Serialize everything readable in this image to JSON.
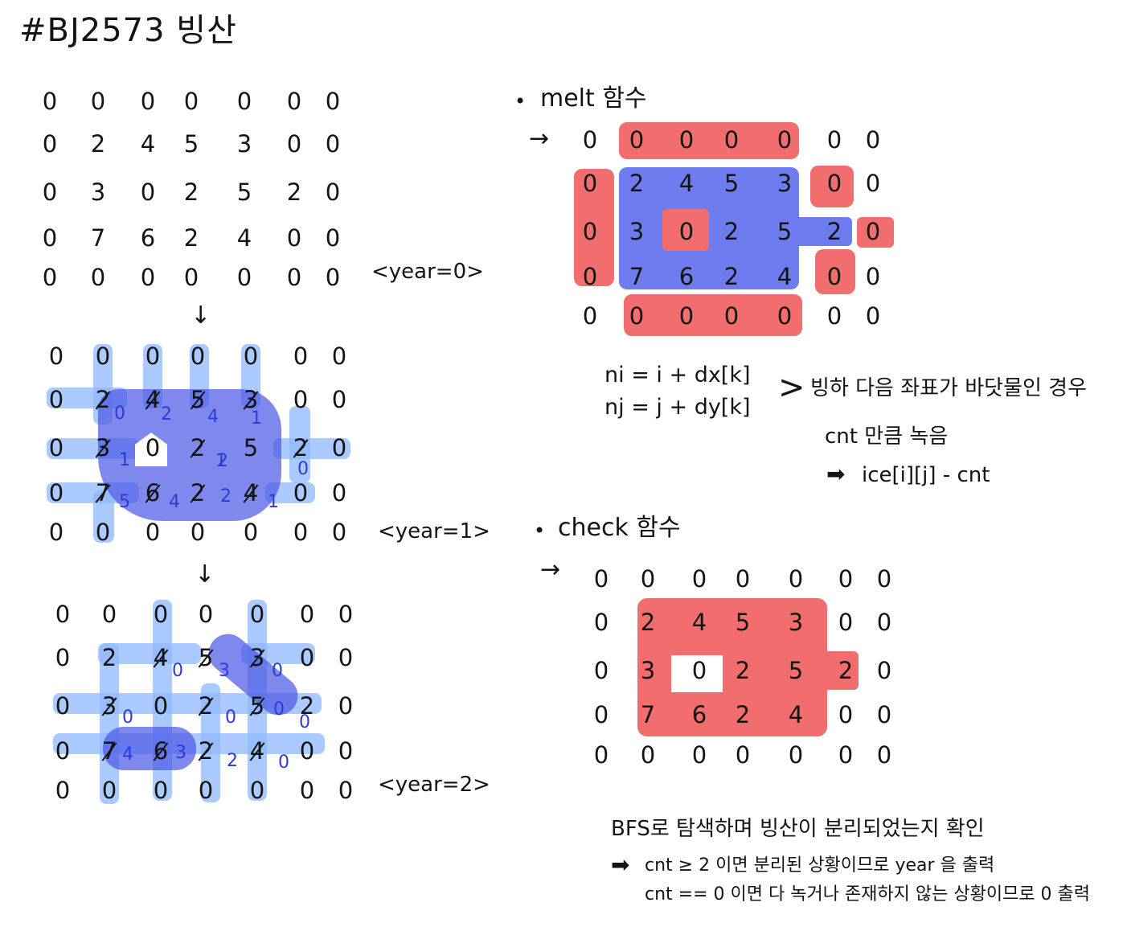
{
  "title": "#BJ2573 빙산",
  "grid0": [
    [
      "0",
      "0",
      "0",
      "0",
      "0",
      "0",
      "0"
    ],
    [
      "0",
      "2",
      "4",
      "5",
      "3",
      "0",
      "0"
    ],
    [
      "0",
      "3",
      "0",
      "2",
      "5",
      "2",
      "0"
    ],
    [
      "0",
      "7",
      "6",
      "2",
      "4",
      "0",
      "0"
    ],
    [
      "0",
      "0",
      "0",
      "0",
      "0",
      "0",
      "0"
    ]
  ],
  "grid1_subs": [
    "0",
    "2",
    "4",
    "1",
    "1",
    "1",
    "0",
    "5",
    "4",
    "2",
    "1",
    "2"
  ],
  "grid2_subs": [
    "0",
    "3",
    "0",
    "0",
    "0",
    "0",
    "4",
    "3",
    "2",
    "0",
    "0"
  ],
  "labels": {
    "year0": "<year=0>",
    "year1": "<year=1>",
    "year2": "<year=2>"
  },
  "down_arrow": "↓",
  "melt": {
    "bullet": "•",
    "heading": "melt 함수",
    "arrow": "→",
    "code1": "ni = i + dx[k]",
    "code2": "nj = j + dy[k]",
    "brace": ">",
    "cond": "빙하 다음 좌표가 바닷물인 경우",
    "action": "cnt 만큼 녹음",
    "result_arrow": "➡",
    "result": "ice[i][j] - cnt"
  },
  "check": {
    "bullet": "•",
    "heading": "check 함수",
    "arrow": "→",
    "line1": "BFS로 탐색하며 빙산이 분리되었는지 확인",
    "line2_arrow": "➡",
    "line2": "cnt ≥ 2 이면 분리된 상황이므로 year 을 출력",
    "line3": "cnt == 0 이면 다 녹거나 존재하지 않는 상황이므로 0 출력"
  }
}
